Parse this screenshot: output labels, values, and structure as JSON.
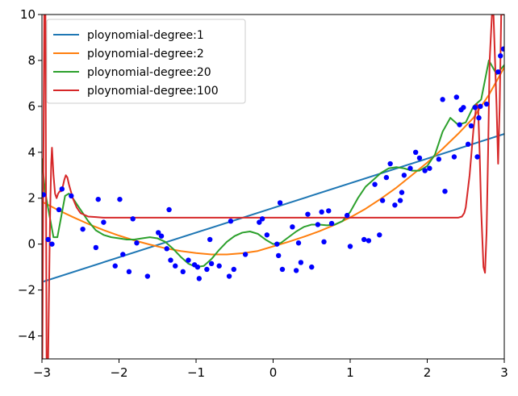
{
  "chart_data": {
    "type": "line",
    "title": "",
    "xlabel": "",
    "ylabel": "",
    "xlim": [
      -3,
      3
    ],
    "ylim": [
      -5,
      10
    ],
    "x_ticks": [
      -3,
      -2,
      -1,
      0,
      1,
      2,
      3
    ],
    "x_tick_labels": [
      "−3",
      "−2",
      "−1",
      "0",
      "1",
      "2",
      "3"
    ],
    "y_ticks": [
      -4,
      -2,
      0,
      2,
      4,
      6,
      8,
      10
    ],
    "y_tick_labels": [
      "−4",
      "−2",
      "0",
      "2",
      "4",
      "6",
      "8",
      "10"
    ],
    "grid": false,
    "legend_position": "top-left",
    "scatter": {
      "color": "#0000ff",
      "x": [
        -2.98,
        -2.92,
        -2.87,
        -2.78,
        -2.74,
        -2.62,
        -2.47,
        -2.3,
        -2.27,
        -2.2,
        -2.05,
        -1.99,
        -1.95,
        -1.87,
        -1.82,
        -1.77,
        -1.63,
        -1.49,
        -1.45,
        -1.38,
        -1.35,
        -1.33,
        -1.27,
        -1.17,
        -1.1,
        -1.02,
        -0.98,
        -0.96,
        -0.86,
        -0.82,
        -0.8,
        -0.7,
        -0.57,
        -0.55,
        -0.51,
        -0.36,
        -0.18,
        -0.14,
        -0.08,
        0.05,
        0.07,
        0.09,
        0.12,
        0.25,
        0.3,
        0.33,
        0.36,
        0.45,
        0.5,
        0.58,
        0.63,
        0.66,
        0.72,
        0.76,
        0.96,
        1.0,
        1.18,
        1.24,
        1.32,
        1.38,
        1.42,
        1.47,
        1.52,
        1.58,
        1.65,
        1.67,
        1.7,
        1.78,
        1.85,
        1.9,
        1.97,
        2.03,
        2.15,
        2.2,
        2.23,
        2.35,
        2.38,
        2.42,
        2.44,
        2.47,
        2.53,
        2.57,
        2.62,
        2.65,
        2.67,
        2.69,
        2.77,
        2.92,
        2.95,
        2.99
      ],
      "y": [
        2.15,
        0.2,
        0.0,
        1.5,
        2.4,
        2.1,
        0.65,
        -0.15,
        1.95,
        0.95,
        -0.95,
        1.95,
        -0.45,
        -1.2,
        1.1,
        0.05,
        -1.4,
        0.5,
        0.35,
        -0.2,
        1.5,
        -0.7,
        -0.95,
        -1.2,
        -0.7,
        -0.9,
        -1.0,
        -1.5,
        -1.1,
        0.2,
        -0.85,
        -0.95,
        -1.4,
        1.0,
        -1.1,
        -0.45,
        0.95,
        1.1,
        0.4,
        0.0,
        -0.5,
        1.8,
        -1.1,
        0.75,
        -1.15,
        0.05,
        -0.8,
        1.3,
        -1.0,
        0.85,
        1.4,
        0.1,
        1.45,
        0.9,
        1.25,
        -0.1,
        0.2,
        0.15,
        2.6,
        0.4,
        1.9,
        2.9,
        3.5,
        1.7,
        1.9,
        2.25,
        3.0,
        3.3,
        4.0,
        3.75,
        3.2,
        3.3,
        3.7,
        6.3,
        2.3,
        3.8,
        6.4,
        5.2,
        5.85,
        5.95,
        4.35,
        5.15,
        5.95,
        3.8,
        5.5,
        6.0,
        6.1,
        7.5,
        8.2,
        8.5
      ]
    },
    "series": [
      {
        "name": "ploynomial-degree:1",
        "color": "#1f77b4",
        "x": [
          -3,
          3
        ],
        "y": [
          -1.65,
          4.8
        ]
      },
      {
        "name": "ploynomial-degree:2",
        "color": "#ff7f0e",
        "x": [
          -3.0,
          -2.8,
          -2.6,
          -2.4,
          -2.2,
          -2.0,
          -1.8,
          -1.6,
          -1.4,
          -1.2,
          -1.0,
          -0.8,
          -0.6,
          -0.4,
          -0.2,
          0.0,
          0.2,
          0.4,
          0.6,
          0.8,
          1.0,
          1.2,
          1.4,
          1.6,
          1.8,
          2.0,
          2.2,
          2.4,
          2.6,
          2.8,
          3.0
        ],
        "y": [
          1.85,
          1.5,
          1.18,
          0.88,
          0.61,
          0.37,
          0.16,
          -0.02,
          -0.18,
          -0.3,
          -0.39,
          -0.45,
          -0.45,
          -0.4,
          -0.3,
          -0.1,
          0.1,
          0.32,
          0.56,
          0.84,
          1.16,
          1.54,
          1.98,
          2.46,
          3.0,
          3.55,
          4.15,
          4.8,
          5.5,
          6.5,
          7.7
        ]
      },
      {
        "name": "ploynomial-degree:20",
        "color": "#2ca02c",
        "x": [
          -3.0,
          -2.96,
          -2.9,
          -2.85,
          -2.8,
          -2.75,
          -2.7,
          -2.65,
          -2.6,
          -2.5,
          -2.4,
          -2.3,
          -2.2,
          -2.1,
          -2.0,
          -1.9,
          -1.8,
          -1.7,
          -1.6,
          -1.5,
          -1.4,
          -1.3,
          -1.2,
          -1.1,
          -1.0,
          -0.9,
          -0.8,
          -0.7,
          -0.6,
          -0.5,
          -0.4,
          -0.3,
          -0.2,
          -0.1,
          0.0,
          0.1,
          0.2,
          0.3,
          0.4,
          0.5,
          0.6,
          0.7,
          0.8,
          0.9,
          1.0,
          1.1,
          1.2,
          1.3,
          1.4,
          1.5,
          1.6,
          1.7,
          1.8,
          1.9,
          2.0,
          2.1,
          2.2,
          2.3,
          2.4,
          2.5,
          2.6,
          2.7,
          2.8,
          2.9,
          3.0
        ],
        "y": [
          3.7,
          2.3,
          1.2,
          0.3,
          0.3,
          1.2,
          2.1,
          2.2,
          2.0,
          1.5,
          1.0,
          0.6,
          0.4,
          0.3,
          0.25,
          0.2,
          0.2,
          0.25,
          0.3,
          0.25,
          0.1,
          -0.2,
          -0.55,
          -0.85,
          -1.0,
          -0.95,
          -0.65,
          -0.25,
          0.1,
          0.35,
          0.5,
          0.55,
          0.45,
          0.2,
          0.0,
          0.05,
          0.3,
          0.55,
          0.75,
          0.85,
          0.85,
          0.82,
          0.85,
          1.0,
          1.4,
          2.0,
          2.5,
          2.8,
          3.1,
          3.3,
          3.35,
          3.3,
          3.2,
          3.2,
          3.4,
          3.9,
          4.9,
          5.5,
          5.2,
          5.3,
          6.0,
          6.3,
          8.0,
          7.4,
          7.8
        ]
      },
      {
        "name": "ploynomial-degree:100",
        "color": "#d62728",
        "x": [
          -2.995,
          -2.97,
          -2.955,
          -2.94,
          -2.92,
          -2.9,
          -2.89,
          -2.88,
          -2.87,
          -2.85,
          -2.83,
          -2.81,
          -2.79,
          -2.77,
          -2.75,
          -2.73,
          -2.71,
          -2.69,
          -2.67,
          -2.65,
          -2.6,
          -2.55,
          -2.5,
          -2.4,
          -2.3,
          -2.2,
          -2.0,
          -1.5,
          -1.0,
          -0.5,
          0.0,
          0.5,
          1.0,
          1.5,
          2.0,
          2.3,
          2.4,
          2.45,
          2.48,
          2.5,
          2.55,
          2.6,
          2.64,
          2.66,
          2.68,
          2.7,
          2.73,
          2.75,
          2.77,
          2.79,
          2.81,
          2.84,
          2.86,
          2.88,
          2.9,
          2.92,
          2.94,
          2.96,
          2.99
        ],
        "y": [
          -5.0,
          10.0,
          10.0,
          -5.0,
          -5.0,
          0.0,
          2.0,
          3.5,
          4.2,
          3.0,
          2.2,
          2.0,
          2.2,
          2.3,
          2.3,
          2.5,
          2.8,
          3.0,
          2.9,
          2.6,
          2.0,
          1.6,
          1.35,
          1.2,
          1.18,
          1.15,
          1.15,
          1.15,
          1.15,
          1.15,
          1.15,
          1.15,
          1.15,
          1.15,
          1.15,
          1.15,
          1.15,
          1.2,
          1.35,
          1.6,
          3.0,
          5.0,
          6.1,
          6.0,
          4.0,
          1.5,
          -1.0,
          -1.25,
          0.5,
          4.0,
          8.0,
          10.0,
          10.0,
          8.0,
          6.0,
          3.5,
          6.0,
          10.0,
          10.0
        ]
      }
    ]
  }
}
